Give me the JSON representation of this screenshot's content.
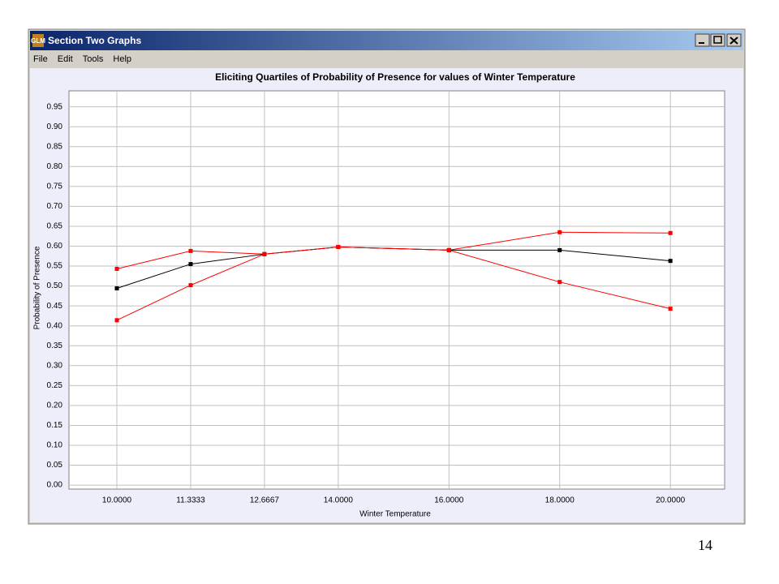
{
  "window": {
    "title": "Section Two Graphs",
    "icon": "GLM"
  },
  "menu": [
    "File",
    "Edit",
    "Tools",
    "Help"
  ],
  "chart_data": {
    "type": "line",
    "title": "Eliciting Quartiles of Probability of Presence for values of Winter Temperature",
    "x_label": "Winter Temperature",
    "y_label": "Probability of Presence",
    "x": [
      10,
      11.3333,
      12.6667,
      14,
      16,
      18,
      20
    ],
    "series": [
      {
        "color": "#ff0000",
        "values": [
          0.543,
          0.588,
          0.58,
          0.598,
          0.59,
          0.635,
          0.633
        ]
      },
      {
        "color": "#000000",
        "values": [
          0.494,
          0.555,
          0.58,
          0.598,
          0.59,
          0.59,
          0.563
        ]
      },
      {
        "color": "#ff0000",
        "values": [
          0.414,
          0.502,
          0.58,
          0.598,
          0.59,
          0.51,
          0.443
        ]
      }
    ],
    "xlim": [
      9.135,
      20.98
    ],
    "ylim": [
      -0.01,
      0.99
    ],
    "xticks": [
      {
        "value": 10,
        "label": "10.0000"
      },
      11.3333,
      12.6667,
      {
        "value": 14,
        "label": "14.0000"
      },
      {
        "value": 16,
        "label": "16.0000"
      },
      {
        "value": 18,
        "label": "18.0000"
      },
      {
        "value": 20,
        "label": "20.0000"
      }
    ],
    "yticks": [
      {
        "value": 0,
        "label": "0.00"
      },
      0.05,
      {
        "value": 0.1,
        "label": "0.10"
      },
      0.15,
      {
        "value": 0.2,
        "label": "0.20"
      },
      0.25,
      {
        "value": 0.3,
        "label": "0.30"
      },
      0.35,
      {
        "value": 0.4,
        "label": "0.40"
      },
      0.45,
      {
        "value": 0.5,
        "label": "0.50"
      },
      0.55,
      {
        "value": 0.6,
        "label": "0.60"
      },
      0.65,
      {
        "value": 0.7,
        "label": "0.70"
      },
      0.75,
      {
        "value": 0.8,
        "label": "0.80"
      },
      0.85,
      {
        "value": 0.9,
        "label": "0.90"
      },
      0.95
    ],
    "grid": true
  },
  "page_number": "14"
}
